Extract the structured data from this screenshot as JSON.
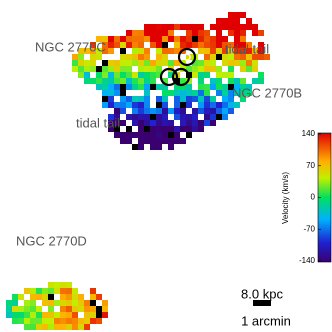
{
  "labels": [
    "NGC 2770C",
    "tidal tail",
    "NGC 2770B",
    "tidal tail",
    "NGC 2770D"
  ],
  "colorbar": {
    "label": "Velocity (km/s)",
    "lim": [
      -140,
      140
    ],
    "ticks": [
      140,
      70,
      0,
      -70,
      -140
    ]
  },
  "scale_bar": {
    "length": "8.0 kpc",
    "angle": "1 arcmin"
  }
}
